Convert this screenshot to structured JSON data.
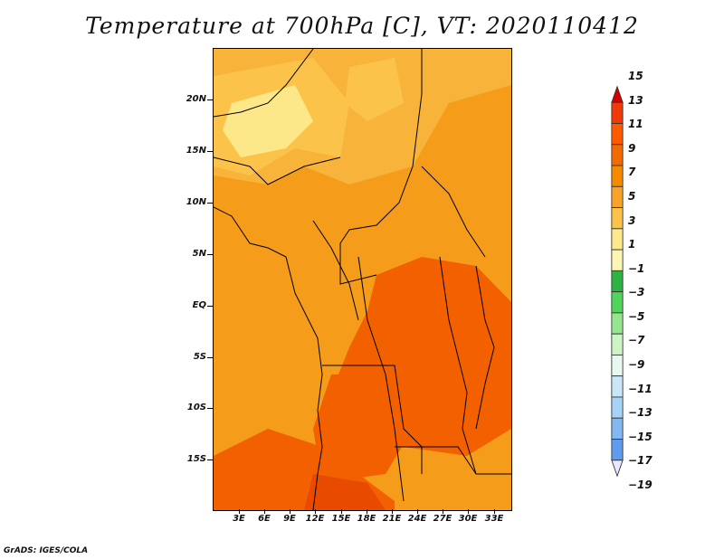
{
  "title": "Temperature at 700hPa [C], VT: 2020110412",
  "credit": "GrADS: IGES/COLA",
  "y_axis_labels": [
    "20N",
    "15N",
    "10N",
    "5N",
    "EQ",
    "5S",
    "10S",
    "15S"
  ],
  "x_axis_labels": [
    "3E",
    "6E",
    "9E",
    "12E",
    "15E",
    "18E",
    "21E",
    "24E",
    "27E",
    "30E",
    "33E"
  ],
  "colorbar": {
    "labels": [
      "15",
      "13",
      "11",
      "9",
      "7",
      "5",
      "3",
      "1",
      "−1",
      "−3",
      "−5",
      "−7",
      "−9",
      "−11",
      "−13",
      "−15",
      "−17",
      "−19"
    ],
    "colors": [
      "#e8e8ff",
      "#d40000",
      "#ff3300",
      "#f26000",
      "#f58a00",
      "#f5a623",
      "#fcc34a",
      "#fde889",
      "#fdf7b0",
      "#28a745",
      "#3dcf45",
      "#7ae06e",
      "#bdf0b0",
      "#dff5e8",
      "#b5dcf5",
      "#8ec6f2",
      "#6aaaf0",
      "#4b8ceb",
      "#3573e6",
      "#245fd8",
      "#1a4cc8",
      "#123ab0",
      "#0a2a90",
      "#0a1a6e"
    ]
  },
  "chart_data": {
    "type": "heatmap",
    "variable": "Temperature at 700hPa",
    "units": "C",
    "valid_time": "2020110412",
    "lon_range": [
      0,
      35
    ],
    "lat_range": [
      -20,
      25
    ],
    "value_range_shown": [
      7,
      13
    ],
    "colorbar_levels": [
      -19,
      -17,
      -15,
      -13,
      -11,
      -9,
      -7,
      -5,
      -3,
      -1,
      1,
      3,
      5,
      7,
      9,
      11,
      13,
      15
    ]
  }
}
